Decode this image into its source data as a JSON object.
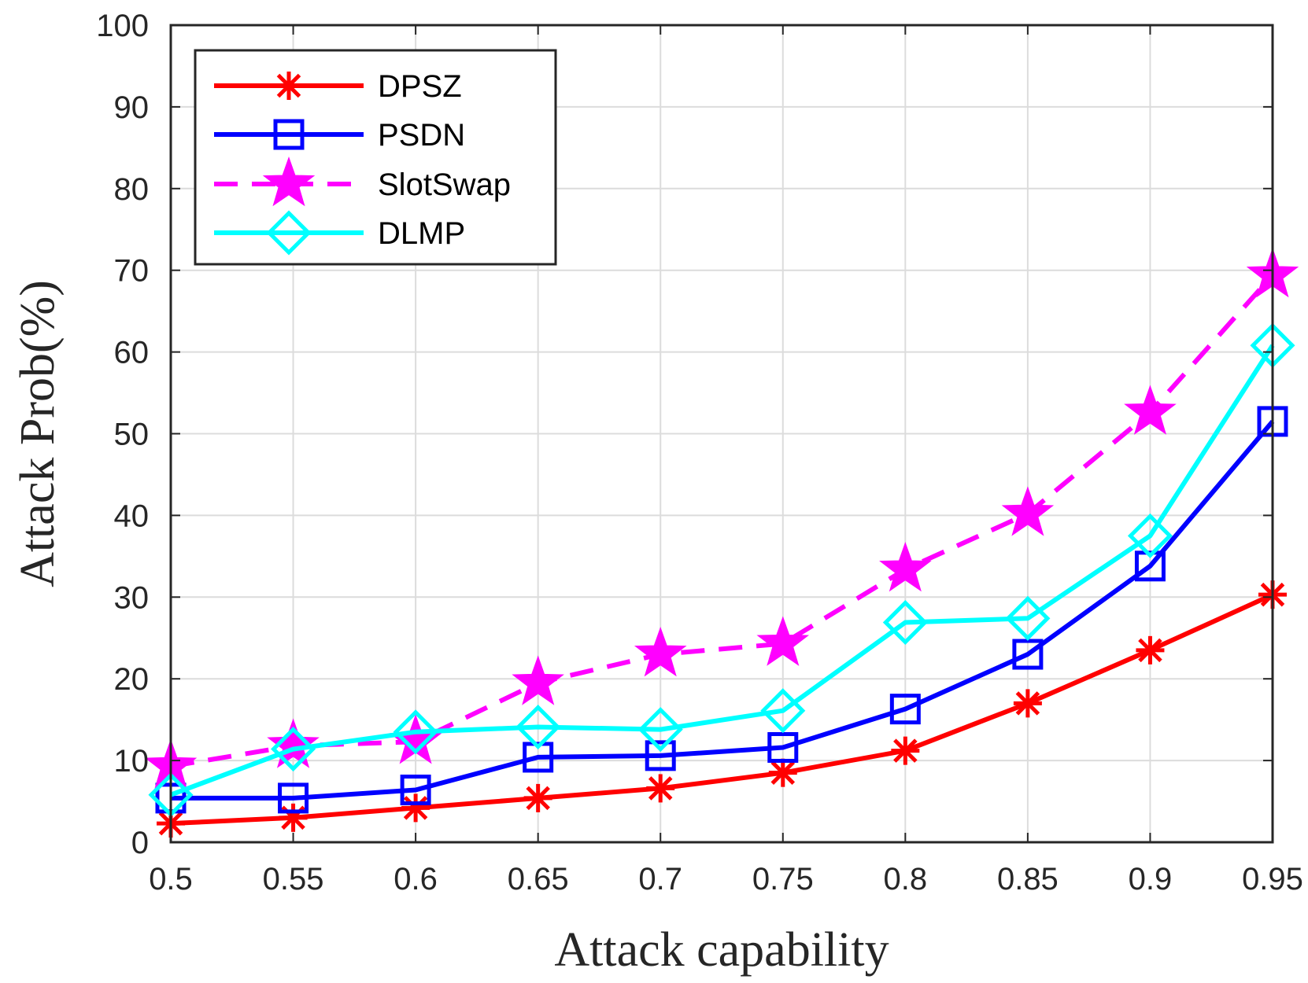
{
  "chart_data": {
    "type": "line",
    "xlabel": "Attack capability",
    "ylabel": "Attack Prob(%)",
    "x": [
      0.5,
      0.55,
      0.6,
      0.65,
      0.7,
      0.75,
      0.8,
      0.85,
      0.9,
      0.95
    ],
    "xticks": [
      "0.5",
      "0.55",
      "0.6",
      "0.65",
      "0.7",
      "0.75",
      "0.8",
      "0.85",
      "0.9",
      "0.95"
    ],
    "yticks": [
      "0",
      "10",
      "20",
      "30",
      "40",
      "50",
      "60",
      "70",
      "80",
      "90",
      "100"
    ],
    "xlim": [
      0.5,
      0.95
    ],
    "ylim": [
      0,
      100
    ],
    "grid": true,
    "legend_position": "top-left",
    "series": [
      {
        "name": "DPSZ",
        "color": "#ff0000",
        "marker": "asterisk",
        "dash": "solid",
        "values": [
          2.3,
          3.0,
          4.2,
          5.4,
          6.6,
          8.5,
          11.2,
          17.0,
          23.5,
          30.3
        ]
      },
      {
        "name": "PSDN",
        "color": "#0000ff",
        "marker": "square",
        "dash": "solid",
        "values": [
          5.4,
          5.4,
          6.4,
          10.4,
          10.6,
          11.6,
          16.3,
          23.0,
          33.8,
          51.5
        ]
      },
      {
        "name": "SlotSwap",
        "color": "#ff00ff",
        "marker": "star",
        "dash": "dashed",
        "values": [
          9.3,
          11.8,
          12.3,
          19.5,
          23.0,
          24.3,
          33.4,
          40.2,
          52.6,
          69.4
        ]
      },
      {
        "name": "DLMP",
        "color": "#00ffff",
        "marker": "diamond",
        "dash": "solid",
        "values": [
          5.8,
          11.4,
          13.5,
          14.1,
          13.8,
          16.1,
          26.9,
          27.4,
          37.5,
          60.8
        ]
      }
    ]
  }
}
